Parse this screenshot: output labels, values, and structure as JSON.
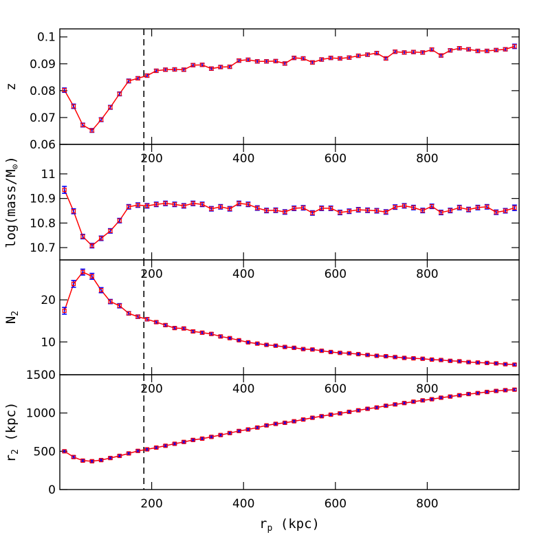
{
  "chart_data": [
    {
      "type": "line",
      "ylabel": "z",
      "ylim": [
        0.06,
        0.103
      ],
      "yticks": [
        0.06,
        0.07,
        0.08,
        0.09,
        0.1
      ],
      "ytick_labels": [
        "0.06",
        "0.07",
        "0.08",
        "0.09",
        "0.1"
      ],
      "xlim": [
        0,
        1000
      ],
      "xticks": [
        200,
        400,
        600,
        800
      ],
      "xtick_labels": [
        "200",
        "400",
        "600",
        "800"
      ],
      "vline": 183,
      "x": [
        10,
        30,
        50,
        70,
        90,
        110,
        130,
        150,
        170,
        190,
        210,
        230,
        250,
        270,
        290,
        310,
        330,
        350,
        370,
        390,
        410,
        430,
        450,
        470,
        490,
        510,
        530,
        550,
        570,
        590,
        610,
        630,
        650,
        670,
        690,
        710,
        730,
        750,
        770,
        790,
        810,
        830,
        850,
        870,
        890,
        910,
        930,
        950,
        970,
        990
      ],
      "y": [
        0.0802,
        0.0742,
        0.0672,
        0.0652,
        0.0692,
        0.0738,
        0.0788,
        0.0836,
        0.0846,
        0.0856,
        0.0874,
        0.0878,
        0.0879,
        0.0878,
        0.0895,
        0.0896,
        0.0882,
        0.0888,
        0.0889,
        0.0912,
        0.0915,
        0.0909,
        0.0909,
        0.091,
        0.0901,
        0.0922,
        0.092,
        0.0905,
        0.0916,
        0.0922,
        0.092,
        0.0923,
        0.093,
        0.0934,
        0.094,
        0.092,
        0.0945,
        0.0942,
        0.0944,
        0.0942,
        0.0953,
        0.0931,
        0.095,
        0.0958,
        0.0954,
        0.0948,
        0.0948,
        0.0951,
        0.0954,
        0.0965
      ],
      "yerr": [
        0.0008,
        0.0008,
        0.0007,
        0.0007,
        0.0007,
        0.0007,
        0.0007,
        0.0007,
        0.0006,
        0.0006,
        0.0006,
        0.0006,
        0.0006,
        0.0006,
        0.0006,
        0.0006,
        0.0006,
        0.0006,
        0.0006,
        0.0006,
        0.0006,
        0.0006,
        0.0006,
        0.0006,
        0.0006,
        0.0006,
        0.0006,
        0.0006,
        0.0006,
        0.0006,
        0.0006,
        0.0006,
        0.0006,
        0.0006,
        0.0006,
        0.0006,
        0.0006,
        0.0006,
        0.0006,
        0.0006,
        0.0006,
        0.0006,
        0.0006,
        0.0006,
        0.0006,
        0.0006,
        0.0006,
        0.0006,
        0.0006,
        0.0008
      ]
    },
    {
      "type": "line",
      "ylabel_main": "log(mass/M",
      "ylabel_sub": "⊙",
      "ylabel_close": ")",
      "ylim": [
        10.65,
        11.12
      ],
      "yticks": [
        10.7,
        10.8,
        10.9,
        11
      ],
      "ytick_labels": [
        "10.7",
        "10.8",
        "10.9",
        "11"
      ],
      "xlim": [
        0,
        1000
      ],
      "xticks": [
        200,
        400,
        600,
        800
      ],
      "xtick_labels": [
        "200",
        "400",
        "600",
        "800"
      ],
      "vline": 183,
      "x": [
        10,
        30,
        50,
        70,
        90,
        110,
        130,
        150,
        170,
        190,
        210,
        230,
        250,
        270,
        290,
        310,
        330,
        350,
        370,
        390,
        410,
        430,
        450,
        470,
        490,
        510,
        530,
        550,
        570,
        590,
        610,
        630,
        650,
        670,
        690,
        710,
        730,
        750,
        770,
        790,
        810,
        830,
        850,
        870,
        890,
        910,
        930,
        950,
        970,
        990
      ],
      "y": [
        10.935,
        10.848,
        10.745,
        10.708,
        10.738,
        10.768,
        10.81,
        10.866,
        10.873,
        10.87,
        10.876,
        10.88,
        10.876,
        10.87,
        10.88,
        10.876,
        10.858,
        10.866,
        10.858,
        10.88,
        10.876,
        10.861,
        10.851,
        10.852,
        10.845,
        10.86,
        10.862,
        10.841,
        10.86,
        10.86,
        10.843,
        10.848,
        10.854,
        10.852,
        10.85,
        10.845,
        10.865,
        10.87,
        10.863,
        10.851,
        10.868,
        10.843,
        10.851,
        10.863,
        10.855,
        10.863,
        10.866,
        10.844,
        10.85,
        10.862
      ],
      "yerr": [
        0.014,
        0.01,
        0.009,
        0.009,
        0.009,
        0.009,
        0.009,
        0.009,
        0.009,
        0.009,
        0.009,
        0.009,
        0.009,
        0.009,
        0.009,
        0.009,
        0.009,
        0.009,
        0.009,
        0.009,
        0.009,
        0.009,
        0.009,
        0.009,
        0.009,
        0.009,
        0.009,
        0.009,
        0.009,
        0.009,
        0.009,
        0.009,
        0.009,
        0.009,
        0.009,
        0.009,
        0.009,
        0.009,
        0.009,
        0.009,
        0.009,
        0.009,
        0.009,
        0.009,
        0.009,
        0.009,
        0.009,
        0.009,
        0.009,
        0.011
      ]
    },
    {
      "type": "line",
      "ylabel_main": "N",
      "ylabel_sub": "2",
      "ylim": [
        2.2,
        29.5
      ],
      "yticks": [
        10,
        20
      ],
      "ytick_labels": [
        "10",
        "20"
      ],
      "xlim": [
        0,
        1000
      ],
      "xticks": [
        200,
        400,
        600,
        800
      ],
      "xtick_labels": [
        "200",
        "400",
        "600",
        "800"
      ],
      "vline": 183,
      "x": [
        10,
        30,
        50,
        70,
        90,
        110,
        130,
        150,
        170,
        190,
        210,
        230,
        250,
        270,
        290,
        310,
        330,
        350,
        370,
        390,
        410,
        430,
        450,
        470,
        490,
        510,
        530,
        550,
        570,
        590,
        610,
        630,
        650,
        670,
        690,
        710,
        730,
        750,
        770,
        790,
        810,
        830,
        850,
        870,
        890,
        910,
        930,
        950,
        970,
        990
      ],
      "y": [
        17.4,
        23.8,
        26.6,
        25.6,
        22.3,
        19.6,
        18.6,
        16.8,
        16.0,
        15.4,
        14.7,
        14.0,
        13.3,
        13.2,
        12.5,
        12.2,
        11.9,
        11.3,
        10.9,
        10.4,
        9.9,
        9.6,
        9.3,
        9.1,
        8.8,
        8.6,
        8.3,
        8.2,
        7.9,
        7.6,
        7.4,
        7.3,
        7.1,
        6.9,
        6.7,
        6.6,
        6.4,
        6.2,
        6.1,
        6.0,
        5.8,
        5.7,
        5.5,
        5.4,
        5.2,
        5.1,
        5.0,
        4.9,
        4.7,
        4.6
      ],
      "yerr": [
        0.8,
        0.8,
        0.7,
        0.7,
        0.6,
        0.5,
        0.5,
        0.4,
        0.4,
        0.4,
        0.3,
        0.3,
        0.3,
        0.3,
        0.3,
        0.3,
        0.3,
        0.3,
        0.2,
        0.2,
        0.2,
        0.2,
        0.2,
        0.2,
        0.2,
        0.2,
        0.2,
        0.2,
        0.2,
        0.2,
        0.2,
        0.2,
        0.2,
        0.2,
        0.2,
        0.2,
        0.2,
        0.2,
        0.2,
        0.2,
        0.2,
        0.2,
        0.2,
        0.2,
        0.2,
        0.2,
        0.2,
        0.2,
        0.2,
        0.2
      ]
    },
    {
      "type": "line",
      "ylabel_main": "r",
      "ylabel_sub": "2",
      "ylabel_rest": " (kpc)",
      "ylim": [
        0,
        1500
      ],
      "yticks": [
        0,
        500,
        1000,
        1500
      ],
      "ytick_labels": [
        "0",
        "500",
        "1000",
        "1500"
      ],
      "xlim": [
        0,
        1000
      ],
      "xticks": [
        200,
        400,
        600,
        800
      ],
      "xtick_labels": [
        "200",
        "400",
        "600",
        "800"
      ],
      "vline": 183,
      "xlabel_main": "r",
      "xlabel_sub": "p",
      "xlabel_rest": " (kpc)",
      "x": [
        10,
        30,
        50,
        70,
        90,
        110,
        130,
        150,
        170,
        190,
        210,
        230,
        250,
        270,
        290,
        310,
        330,
        350,
        370,
        390,
        410,
        430,
        450,
        470,
        490,
        510,
        530,
        550,
        570,
        590,
        610,
        630,
        650,
        670,
        690,
        710,
        730,
        750,
        770,
        790,
        810,
        830,
        850,
        870,
        890,
        910,
        930,
        950,
        970,
        990
      ],
      "y": [
        500,
        425,
        378,
        370,
        385,
        412,
        440,
        472,
        505,
        525,
        548,
        572,
        598,
        622,
        648,
        665,
        688,
        712,
        738,
        765,
        785,
        810,
        838,
        858,
        872,
        892,
        915,
        938,
        958,
        978,
        995,
        1015,
        1035,
        1055,
        1072,
        1095,
        1112,
        1130,
        1148,
        1165,
        1180,
        1200,
        1215,
        1232,
        1248,
        1260,
        1275,
        1288,
        1298,
        1305
      ],
      "yerr": [
        15,
        14,
        13,
        13,
        13,
        13,
        13,
        13,
        13,
        13,
        13,
        13,
        13,
        13,
        13,
        13,
        13,
        13,
        13,
        13,
        13,
        13,
        13,
        13,
        13,
        13,
        13,
        13,
        13,
        13,
        13,
        13,
        13,
        13,
        13,
        13,
        13,
        13,
        13,
        13,
        13,
        13,
        13,
        13,
        13,
        13,
        13,
        13,
        13,
        13
      ]
    }
  ],
  "colors": {
    "line": "#ff0000",
    "errorbar": "#0000ff",
    "marker": "#ff0000",
    "axis": "#000000",
    "vline": "#000000"
  }
}
